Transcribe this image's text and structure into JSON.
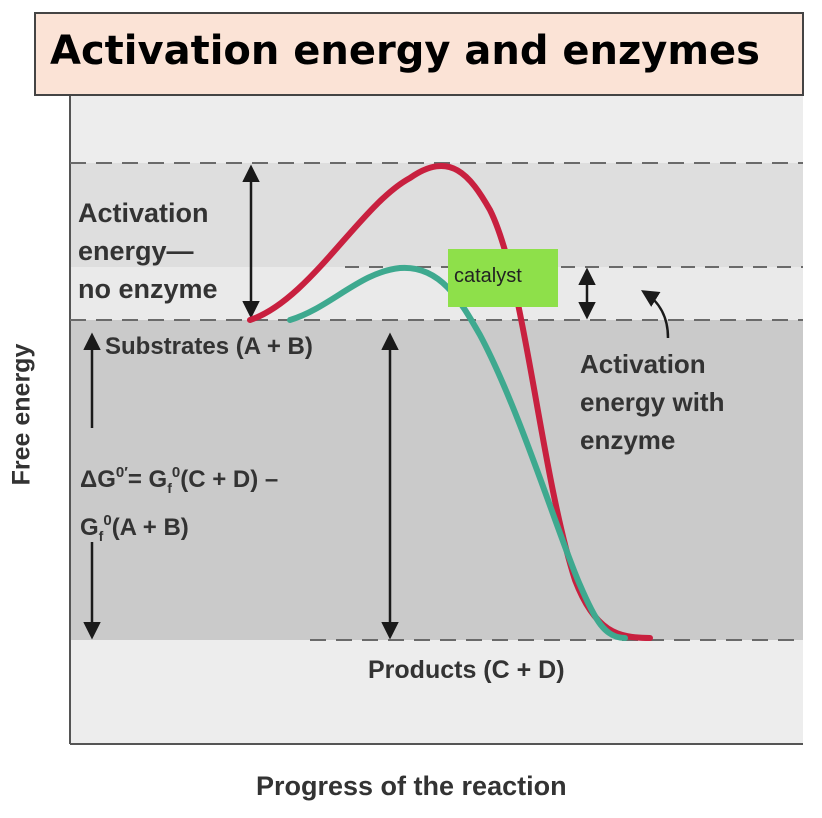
{
  "title": "Activation energy and enzymes",
  "labels": {
    "activation_no_enzyme_line1": "Activation",
    "activation_no_enzyme_line2": "energy—",
    "activation_no_enzyme_line3": "no enzyme",
    "activation_with_enzyme_line1": "Activation",
    "activation_with_enzyme_line2": "energy with",
    "activation_with_enzyme_line3": "enzyme",
    "substrates": "Substrates (A + B)",
    "products": "Products (C + D)",
    "catalyst": "catalyst",
    "delta_g_delta": "ΔG",
    "delta_g_sup": "0′",
    "delta_g_eq": "= G",
    "delta_g_sub1": "f",
    "delta_g_sup1": "0",
    "delta_g_cd": "(C + D) –",
    "delta_g_g2": "G",
    "delta_g_sub2": "f",
    "delta_g_sup2": "0",
    "delta_g_ab": "(A + B)"
  },
  "axes": {
    "x_label": "Progress of the reaction",
    "y_label": "Free energy"
  },
  "colors": {
    "no_enzyme_curve": "#c8203f",
    "with_enzyme_curve": "#3ea98f",
    "highlight": "#8ee04a",
    "title_background": "#fbe3d6"
  }
}
